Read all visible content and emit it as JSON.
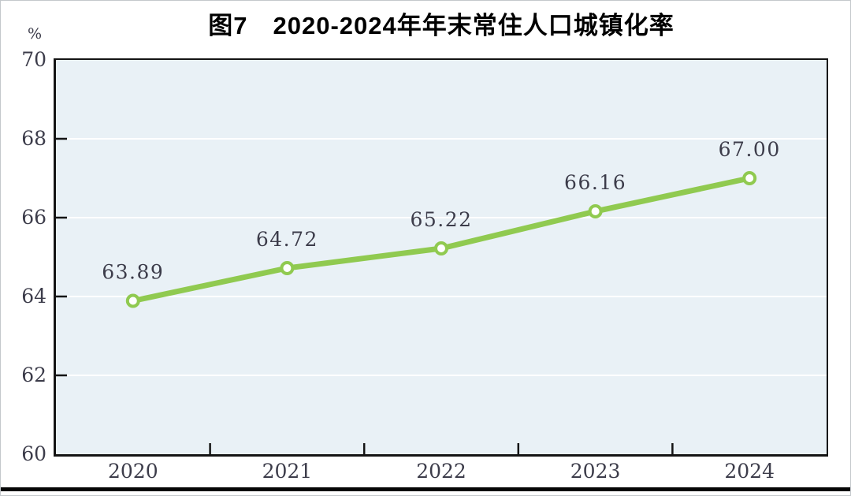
{
  "figure": {
    "title": "图7　2020-2024年年末常住人口城镇化率",
    "unit_label": "%"
  },
  "chart_data": {
    "type": "line",
    "title": "图7　2020-2024年年末常住人口城镇化率",
    "categories": [
      "2020",
      "2021",
      "2022",
      "2023",
      "2024"
    ],
    "series": [
      {
        "name": "年末常住人口城镇化率",
        "values": [
          63.89,
          64.72,
          65.22,
          66.16,
          67.0
        ]
      }
    ],
    "point_labels": [
      "63.89",
      "64.72",
      "65.22",
      "66.16",
      "67.00"
    ],
    "xlabel": "",
    "ylabel": "%",
    "ylim": [
      60,
      70
    ],
    "yticks": [
      60,
      62,
      64,
      66,
      68,
      70
    ],
    "ytick_interval": 2,
    "grid": true,
    "legend_position": "none",
    "colors": {
      "line": "#90CA50",
      "marker_fill": "#FFFFFF",
      "plot_background": "#E9F1F6",
      "gridline": "#FFFFFF",
      "axis": "#141414",
      "tick_text": "#3C3C4A",
      "title_text": "#000000",
      "bottom_rule": "#050505"
    }
  }
}
